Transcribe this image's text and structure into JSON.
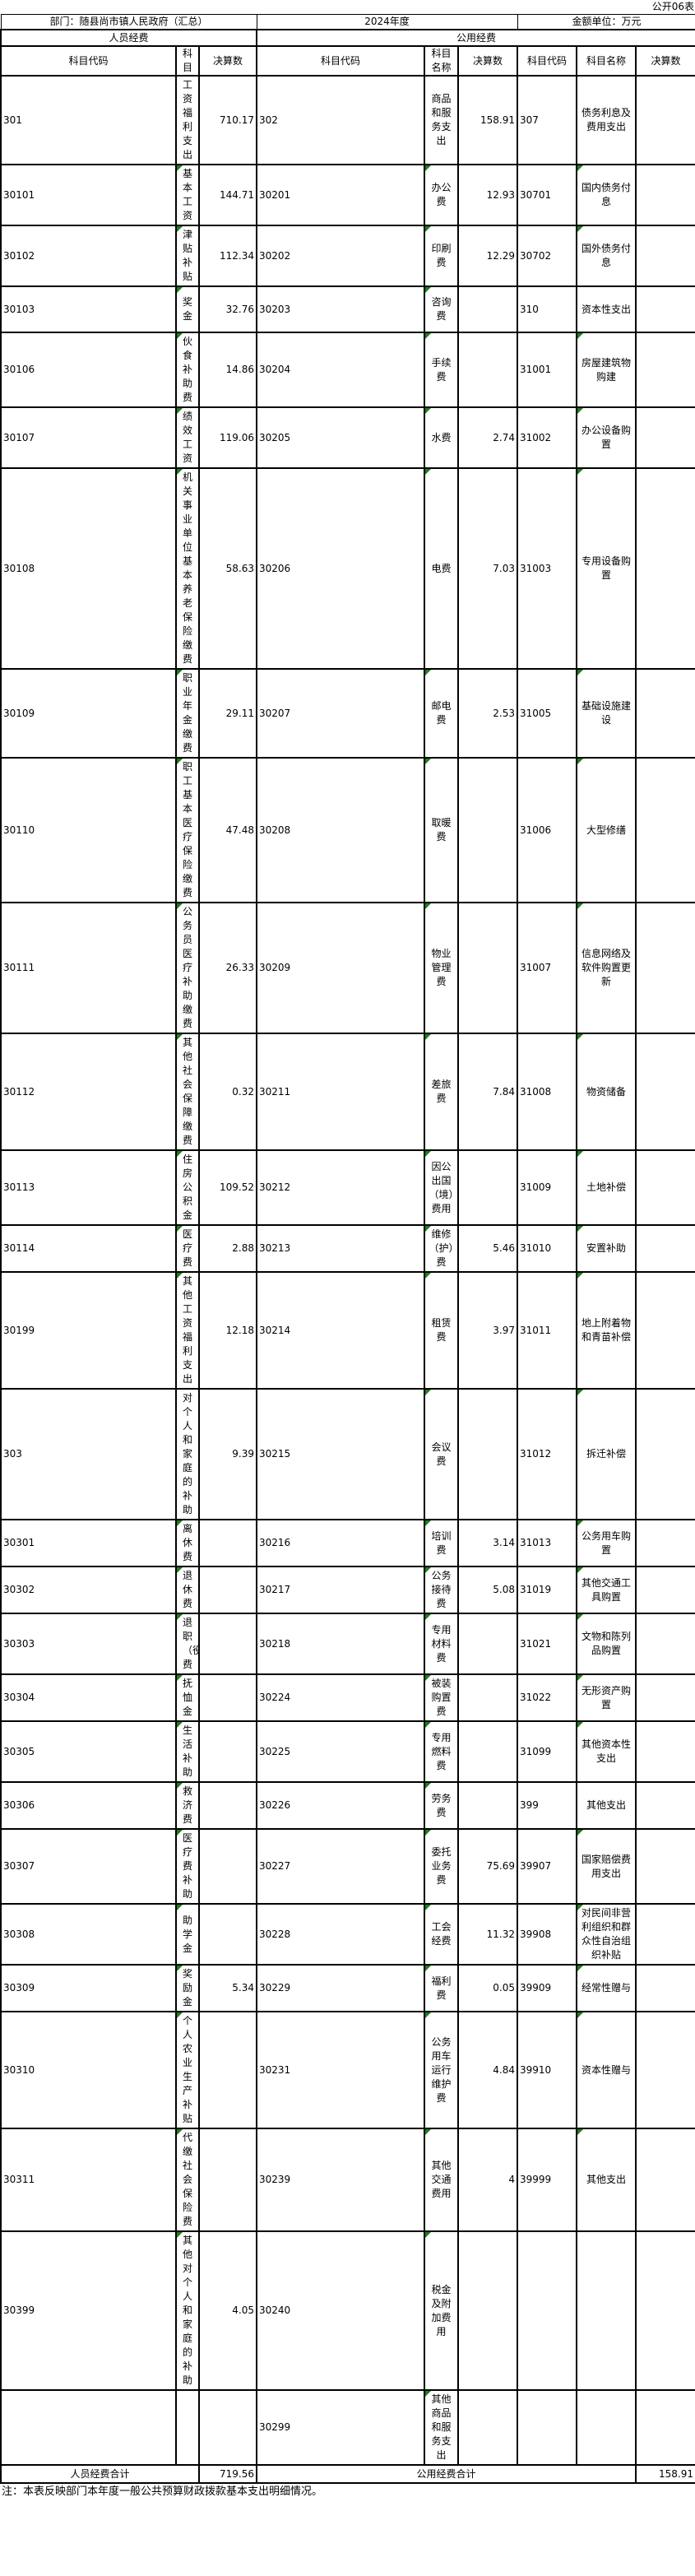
{
  "sheet_label": "公开06表",
  "meta": {
    "department": "部门：随县尚市镇人民政府（汇总）",
    "year": "2024年度",
    "unit": "金额单位：万元"
  },
  "sections": {
    "personnel": "人员经费",
    "public": "公用经费"
  },
  "headers": {
    "code": "科目代码",
    "name_short": "科目",
    "name": "科目名称",
    "amount": "决算数"
  },
  "colors": {
    "flag_green": "#1e7e1e",
    "border_black": "#000000"
  },
  "rows": [
    [
      "301",
      "工资福利支出",
      "710.17",
      "302",
      "商品和服务支出",
      "158.91",
      "307",
      "债务利息及费用支出",
      ""
    ],
    [
      "30101",
      "基本工资",
      "144.71",
      "30201",
      "办公费",
      "12.93",
      "30701",
      "国内债务付息",
      ""
    ],
    [
      "30102",
      "津贴补贴",
      "112.34",
      "30202",
      "印刷费",
      "12.29",
      "30702",
      "国外债务付息",
      ""
    ],
    [
      "30103",
      "奖金",
      "32.76",
      "30203",
      "咨询费",
      "",
      "310",
      "资本性支出",
      ""
    ],
    [
      "30106",
      "伙食补助费",
      "14.86",
      "30204",
      "手续费",
      "",
      "31001",
      "房屋建筑物购建",
      ""
    ],
    [
      "30107",
      "绩效工资",
      "119.06",
      "30205",
      "水费",
      "2.74",
      "31002",
      "办公设备购置",
      ""
    ],
    [
      "30108",
      "机关事业单位基本养老保险缴费",
      "58.63",
      "30206",
      "电费",
      "7.03",
      "31003",
      "专用设备购置",
      ""
    ],
    [
      "30109",
      "职业年金缴费",
      "29.11",
      "30207",
      "邮电费",
      "2.53",
      "31005",
      "基础设施建设",
      ""
    ],
    [
      "30110",
      "职工基本医疗保险缴费",
      "47.48",
      "30208",
      "取暖费",
      "",
      "31006",
      "大型修缮",
      ""
    ],
    [
      "30111",
      "公务员医疗补助缴费",
      "26.33",
      "30209",
      "物业管理费",
      "",
      "31007",
      "信息网络及软件购置更新",
      ""
    ],
    [
      "30112",
      "其他社会保障缴费",
      "0.32",
      "30211",
      "差旅费",
      "7.84",
      "31008",
      "物资储备",
      ""
    ],
    [
      "30113",
      "住房公积金",
      "109.52",
      "30212",
      "因公出国（境）费用",
      "",
      "31009",
      "土地补偿",
      ""
    ],
    [
      "30114",
      "医疗费",
      "2.88",
      "30213",
      "维修（护）费",
      "5.46",
      "31010",
      "安置补助",
      ""
    ],
    [
      "30199",
      "其他工资福利支出",
      "12.18",
      "30214",
      "租赁费",
      "3.97",
      "31011",
      "地上附着物和青苗补偿",
      ""
    ],
    [
      "303",
      "对个人和家庭的补助",
      "9.39",
      "30215",
      "会议费",
      "",
      "31012",
      "拆迁补偿",
      ""
    ],
    [
      "30301",
      "离休费",
      "",
      "30216",
      "培训费",
      "3.14",
      "31013",
      "公务用车购置",
      ""
    ],
    [
      "30302",
      "退休费",
      "",
      "30217",
      "公务接待费",
      "5.08",
      "31019",
      "其他交通工具购置",
      ""
    ],
    [
      "30303",
      "退职（役）费",
      "",
      "30218",
      "专用材料费",
      "",
      "31021",
      "文物和陈列品购置",
      ""
    ],
    [
      "30304",
      "抚恤金",
      "",
      "30224",
      "被装购置费",
      "",
      "31022",
      "无形资产购置",
      ""
    ],
    [
      "30305",
      "生活补助",
      "",
      "30225",
      "专用燃料费",
      "",
      "31099",
      "其他资本性支出",
      ""
    ],
    [
      "30306",
      "救济费",
      "",
      "30226",
      "劳务费",
      "",
      "399",
      "其他支出",
      ""
    ],
    [
      "30307",
      "医疗费补助",
      "",
      "30227",
      "委托业务费",
      "75.69",
      "39907",
      "国家赔偿费用支出",
      ""
    ],
    [
      "30308",
      "助学金",
      "",
      "30228",
      "工会经费",
      "11.32",
      "39908",
      "对民间非营利组织和群众性自治组织补贴",
      ""
    ],
    [
      "30309",
      "奖励金",
      "5.34",
      "30229",
      "福利费",
      "0.05",
      "39909",
      "经常性赠与",
      ""
    ],
    [
      "30310",
      "个人农业生产补贴",
      "",
      "30231",
      "公务用车运行维护费",
      "4.84",
      "39910",
      "资本性赠与",
      ""
    ],
    [
      "30311",
      "代缴社会保险费",
      "",
      "30239",
      "其他交通费用",
      "4",
      "39999",
      "其他支出",
      ""
    ],
    [
      "30399",
      "其他对个人和家庭的补助",
      "4.05",
      "30240",
      "税金及附加费用",
      "",
      "",
      "",
      ""
    ],
    [
      "",
      "",
      "",
      "30299",
      "其他商品和服务支出",
      "",
      "",
      "",
      ""
    ]
  ],
  "footer": {
    "personnel_total_label": "人员经费合计",
    "personnel_total": "719.56",
    "public_total_label": "公用经费合计",
    "public_total": "158.91"
  },
  "note": "注：本表反映部门本年度一般公共预算财政拨款基本支出明细情况。"
}
